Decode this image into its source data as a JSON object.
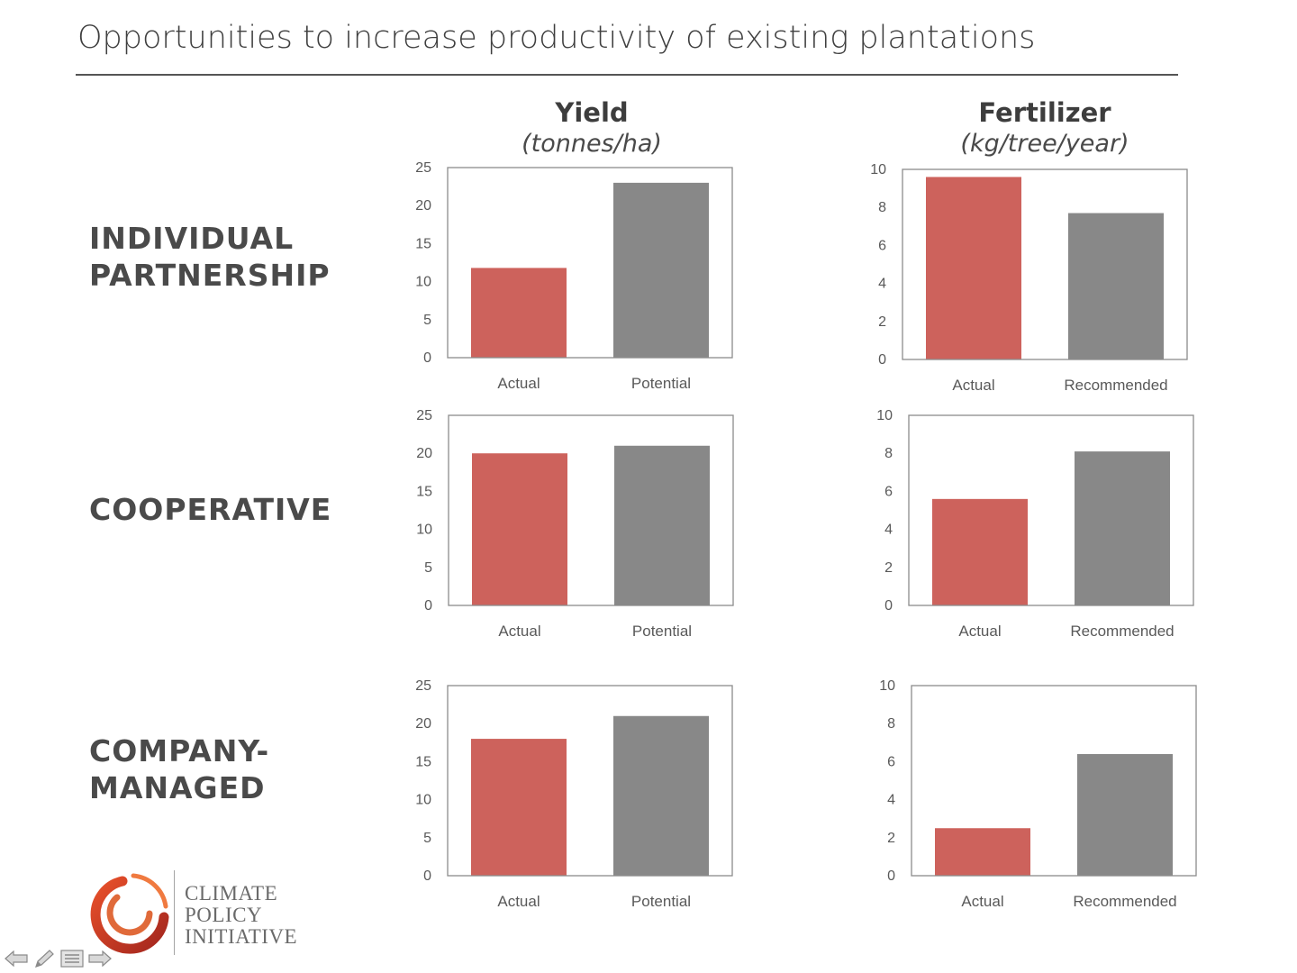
{
  "title": "Opportunities to increase productivity of existing plantations",
  "columns": [
    {
      "main": "Yield",
      "unit": "(tonnes/ha)"
    },
    {
      "main": "Fertilizer",
      "unit": "(kg/tree/year)"
    }
  ],
  "rows": [
    {
      "label_lines": [
        "INDIVIDUAL",
        "PARTNERSHIP"
      ]
    },
    {
      "label_lines": [
        "COOPERATIVE"
      ]
    },
    {
      "label_lines": [
        "COMPANY-",
        "MANAGED"
      ]
    }
  ],
  "colors": {
    "actual": "#cd625c",
    "reference": "#888888"
  },
  "chart_data": [
    {
      "type": "bar",
      "id": "yield-individual",
      "categories": [
        "Actual",
        "Potential"
      ],
      "values": [
        11.8,
        23
      ],
      "ylim": [
        0,
        25
      ],
      "yticks": [
        0,
        5,
        10,
        15,
        20,
        25
      ],
      "title": "",
      "xlabel": "",
      "ylabel": ""
    },
    {
      "type": "bar",
      "id": "fert-individual",
      "categories": [
        "Actual",
        "Recommended"
      ],
      "values": [
        9.6,
        7.7
      ],
      "ylim": [
        0,
        10
      ],
      "yticks": [
        0,
        2,
        4,
        6,
        8,
        10
      ],
      "title": "",
      "xlabel": "",
      "ylabel": ""
    },
    {
      "type": "bar",
      "id": "yield-cooperative",
      "categories": [
        "Actual",
        "Potential"
      ],
      "values": [
        20,
        21
      ],
      "ylim": [
        0,
        25
      ],
      "yticks": [
        0,
        5,
        10,
        15,
        20,
        25
      ],
      "title": "",
      "xlabel": "",
      "ylabel": ""
    },
    {
      "type": "bar",
      "id": "fert-cooperative",
      "categories": [
        "Actual",
        "Recommended"
      ],
      "values": [
        5.6,
        8.1
      ],
      "ylim": [
        0,
        10
      ],
      "yticks": [
        0,
        2,
        4,
        6,
        8,
        10
      ],
      "title": "",
      "xlabel": "",
      "ylabel": ""
    },
    {
      "type": "bar",
      "id": "yield-company",
      "categories": [
        "Actual",
        "Potential"
      ],
      "values": [
        18,
        21
      ],
      "ylim": [
        0,
        25
      ],
      "yticks": [
        0,
        5,
        10,
        15,
        20,
        25
      ],
      "title": "",
      "xlabel": "",
      "ylabel": ""
    },
    {
      "type": "bar",
      "id": "fert-company",
      "categories": [
        "Actual",
        "Recommended"
      ],
      "values": [
        2.5,
        6.4
      ],
      "ylim": [
        0,
        10
      ],
      "yticks": [
        0,
        2,
        4,
        6,
        8,
        10
      ],
      "title": "",
      "xlabel": "",
      "ylabel": ""
    }
  ],
  "logo": {
    "lines": [
      "CLIMATE",
      "POLICY",
      "INITIATIVE"
    ]
  },
  "nav": {
    "icons": [
      "back-arrow-icon",
      "pen-icon",
      "menu-icon",
      "forward-arrow-icon"
    ]
  }
}
